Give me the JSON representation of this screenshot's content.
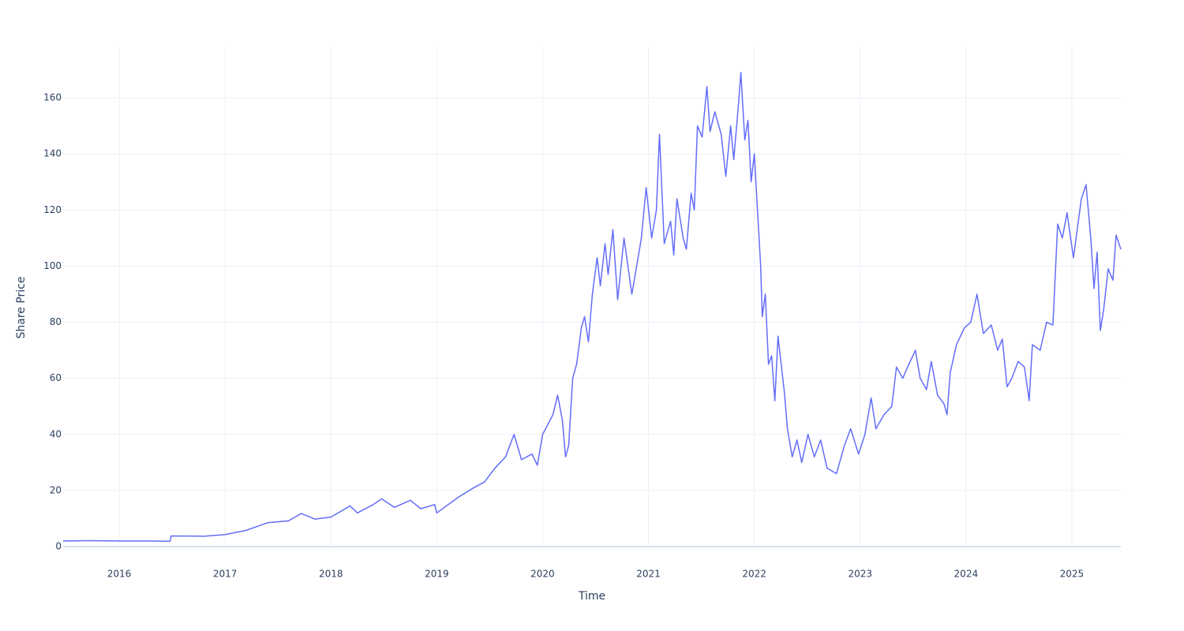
{
  "chart_data": {
    "type": "line",
    "x_label": "Time",
    "y_label": "Share Price",
    "xlim": [
      2015.47,
      2025.463
    ],
    "ylim": [
      0,
      178
    ],
    "xticks": [
      2016,
      2017,
      2018,
      2019,
      2020,
      2021,
      2022,
      2023,
      2024,
      2025
    ],
    "yticks": [
      0,
      20,
      40,
      60,
      80,
      100,
      120,
      140,
      160
    ],
    "grid": true,
    "x": [
      2015.47,
      2015.7,
      2016.0,
      2016.3,
      2016.48,
      2016.49,
      2016.8,
      2017.0,
      2017.2,
      2017.4,
      2017.6,
      2017.72,
      2017.85,
      2018.0,
      2018.18,
      2018.25,
      2018.4,
      2018.48,
      2018.6,
      2018.75,
      2018.85,
      2018.98,
      2019.0,
      2019.2,
      2019.35,
      2019.45,
      2019.55,
      2019.65,
      2019.73,
      2019.8,
      2019.9,
      2019.95,
      2020.0,
      2020.097,
      2020.142,
      2020.187,
      2020.216,
      2020.246,
      2020.284,
      2020.321,
      2020.366,
      2020.396,
      2020.433,
      2020.47,
      2020.515,
      2020.545,
      2020.59,
      2020.619,
      2020.664,
      2020.709,
      2020.769,
      2020.843,
      2020.933,
      2020.978,
      2021.03,
      2021.075,
      2021.104,
      2021.149,
      2021.209,
      2021.239,
      2021.269,
      2021.328,
      2021.358,
      2021.403,
      2021.433,
      2021.463,
      2021.507,
      2021.552,
      2021.582,
      2021.627,
      2021.687,
      2021.731,
      2021.776,
      2021.806,
      2021.851,
      2021.873,
      2021.91,
      2021.94,
      2021.97,
      2022.0,
      2022.03,
      2022.06,
      2022.075,
      2022.104,
      2022.134,
      2022.164,
      2022.194,
      2022.224,
      2022.254,
      2022.284,
      2022.313,
      2022.358,
      2022.403,
      2022.448,
      2022.507,
      2022.567,
      2022.627,
      2022.687,
      2022.776,
      2022.851,
      2022.91,
      2022.985,
      2023.045,
      2023.104,
      2023.149,
      2023.224,
      2023.299,
      2023.343,
      2023.403,
      2023.448,
      2023.522,
      2023.567,
      2023.627,
      2023.672,
      2023.731,
      2023.791,
      2023.821,
      2023.851,
      2023.91,
      2023.985,
      2024.045,
      2024.104,
      2024.164,
      2024.239,
      2024.299,
      2024.343,
      2024.388,
      2024.433,
      2024.493,
      2024.552,
      2024.597,
      2024.627,
      2024.701,
      2024.761,
      2024.821,
      2024.866,
      2024.91,
      2024.955,
      2025.015,
      2025.09,
      2025.134,
      2025.179,
      2025.209,
      2025.239,
      2025.269,
      2025.299,
      2025.343,
      2025.388,
      2025.418,
      2025.463
    ],
    "series": [
      {
        "color": "#636efa",
        "values": [
          2.0,
          2.1,
          2.0,
          2.0,
          1.9,
          3.8,
          3.7,
          4.3,
          5.8,
          8.5,
          9.2,
          11.8,
          9.8,
          10.5,
          14.5,
          12.0,
          15.0,
          17.0,
          14.0,
          16.5,
          13.5,
          15.0,
          12.0,
          17.5,
          21.0,
          23.0,
          28.0,
          32.0,
          40.0,
          31.0,
          33.0,
          29.0,
          40,
          47,
          54,
          45,
          32,
          36,
          60,
          65,
          78,
          82,
          73,
          90,
          103,
          93,
          108,
          97,
          113,
          88,
          110,
          90,
          110,
          128,
          110,
          120,
          147,
          108,
          116,
          104,
          124,
          110,
          106,
          126,
          120,
          150,
          146,
          164,
          148,
          155,
          147,
          132,
          150,
          138,
          158,
          169,
          145,
          152,
          130,
          140,
          120,
          100,
          82,
          90,
          65,
          68,
          52,
          75,
          65,
          55,
          42,
          32,
          38,
          30,
          40,
          32,
          38,
          28,
          26,
          36,
          42,
          33,
          40,
          53,
          42,
          47,
          50,
          64,
          60,
          64,
          70,
          60,
          56,
          66,
          54,
          51,
          47,
          62,
          72,
          78,
          80,
          90,
          76,
          79,
          70,
          74,
          57,
          60,
          66,
          64,
          52,
          72,
          70,
          80,
          79,
          115,
          110,
          119,
          103,
          124,
          129,
          110,
          92,
          105,
          77,
          84,
          99,
          95,
          111,
          106
        ]
      }
    ]
  }
}
